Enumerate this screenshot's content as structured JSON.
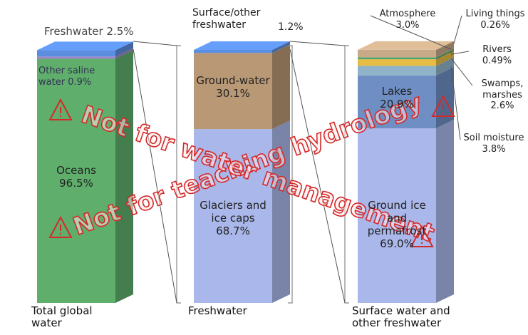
{
  "chart_data": [
    {
      "type": "stacked-bar",
      "categories": [
        "Total global water"
      ],
      "ylim": [
        0,
        100
      ],
      "series": [
        {
          "name": "Oceans",
          "color": "#5fae6c",
          "values": [
            96.5
          ],
          "value_labels": [
            "96.5%"
          ]
        },
        {
          "name": "Other saline water",
          "color": "#9a86c8",
          "values": [
            0.9
          ],
          "value_labels": [
            "0.9%"
          ]
        },
        {
          "name": "Freshwater",
          "color": "#5b8ee0",
          "values": [
            2.5
          ],
          "value_labels": [
            "2.5%"
          ]
        }
      ]
    },
    {
      "type": "stacked-bar",
      "categories": [
        "Freshwater"
      ],
      "ylim": [
        0,
        100
      ],
      "series": [
        {
          "name": "Glaciers and ice caps",
          "color": "#a9b7ea",
          "values": [
            68.7
          ],
          "value_labels": [
            "68.7%"
          ]
        },
        {
          "name": "Ground-water",
          "color": "#b99875",
          "values": [
            30.1
          ],
          "value_labels": [
            "30.1%"
          ]
        },
        {
          "name": "Surface/other freshwater",
          "color": "#5b8ee0",
          "values": [
            1.2
          ],
          "value_labels": [
            "1.2%"
          ]
        }
      ]
    },
    {
      "type": "stacked-bar",
      "categories": [
        "Surface water and other freshwater"
      ],
      "ylim": [
        0,
        100
      ],
      "series": [
        {
          "name": "Ground ice and permafrost",
          "color": "#a9b7ea",
          "values": [
            69.0
          ],
          "value_labels": [
            "69.0%"
          ]
        },
        {
          "name": "Lakes",
          "color": "#6f8fc4",
          "values": [
            20.9
          ],
          "value_labels": [
            "20.9%"
          ]
        },
        {
          "name": "Soil moisture",
          "color": "#8fb3c9",
          "values": [
            3.8
          ],
          "value_labels": [
            "3.8%"
          ]
        },
        {
          "name": "Swamps, marshes",
          "color": "#e6bc45",
          "values": [
            2.6
          ],
          "value_labels": [
            "2.6%"
          ]
        },
        {
          "name": "Rivers",
          "color": "#3e9c6e",
          "values": [
            0.49
          ],
          "value_labels": [
            "0.49%"
          ]
        },
        {
          "name": "Living things",
          "color": "#6cae7a",
          "values": [
            0.26
          ],
          "value_labels": [
            "0.26%"
          ]
        },
        {
          "name": "Atmosphere",
          "color": "#c8aa88",
          "values": [
            3.0
          ],
          "value_labels": [
            "3.0%"
          ]
        }
      ]
    }
  ],
  "watermarks": [
    "Not for teaching hydrology",
    "Not for water management"
  ]
}
